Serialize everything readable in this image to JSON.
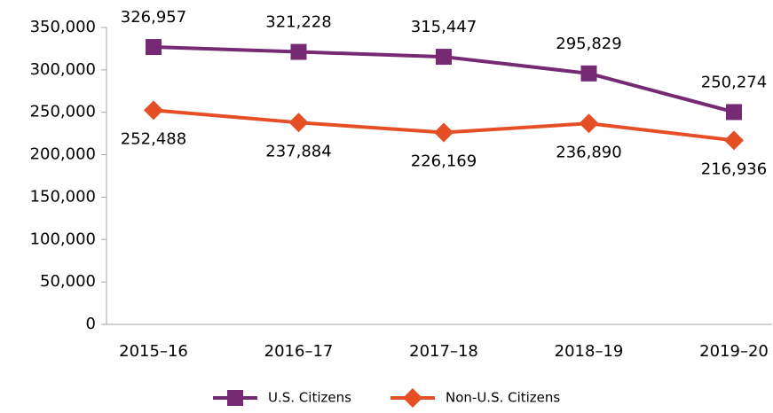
{
  "chart_data": {
    "type": "line",
    "categories": [
      "2015–16",
      "2016–17",
      "2017–18",
      "2018–19",
      "2019–20"
    ],
    "series": [
      {
        "name": "U.S. Citizens",
        "color": "#772a74",
        "marker": "square",
        "values": [
          326957,
          321228,
          315447,
          295829,
          250274
        ],
        "value_labels": [
          "326,957",
          "321,228",
          "315,447",
          "295,829",
          "250,274"
        ]
      },
      {
        "name": "Non-U.S. Citizens",
        "color": "#e64e26",
        "marker": "diamond",
        "values": [
          252488,
          237884,
          226169,
          236890,
          216936
        ],
        "value_labels": [
          "252,488",
          "237,884",
          "226,169",
          "236,890",
          "216,936"
        ]
      }
    ],
    "ylim": [
      0,
      350000
    ],
    "yticks": [
      0,
      {
        "value": 50000,
        "label": "50,000"
      },
      {
        "value": 100000,
        "label": "100,000"
      },
      {
        "value": 150000,
        "label": "150,000"
      },
      {
        "value": 200000,
        "label": "200,000"
      },
      {
        "value": 250000,
        "label": "250,000"
      },
      {
        "value": 300000,
        "label": "300,000"
      },
      {
        "value": 350000,
        "label": "350,000"
      }
    ],
    "grid": false,
    "legend": "bottom"
  }
}
